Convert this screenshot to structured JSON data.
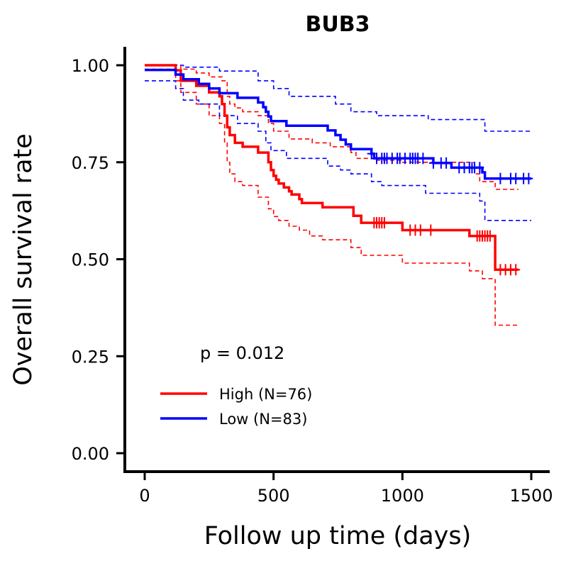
{
  "chart_data": {
    "type": "line",
    "subtype": "kaplan-meier",
    "title": "BUB3",
    "xlabel": "Follow up time (days)",
    "ylabel": "Overall survival rate",
    "xlim": [
      -75,
      1560
    ],
    "ylim": [
      -0.05,
      1.05
    ],
    "x_ticks": [
      0,
      500,
      1000,
      1500
    ],
    "x_tick_labels": [
      "0",
      "500",
      "1000",
      "1500"
    ],
    "y_ticks": [
      0,
      0.25,
      0.5,
      0.75,
      1.0
    ],
    "y_tick_labels": [
      "0.00",
      "0.25",
      "0.50",
      "0.75",
      "1.00"
    ],
    "grid": false,
    "legend_position": "bottom-left",
    "annotation": "p = 0.012",
    "series": [
      {
        "name": "High (N=76)",
        "color": "#ff0000",
        "steps": [
          [
            0,
            1.0
          ],
          [
            120,
            0.987
          ],
          [
            140,
            0.96
          ],
          [
            200,
            0.947
          ],
          [
            250,
            0.93
          ],
          [
            290,
            0.92
          ],
          [
            300,
            0.9
          ],
          [
            310,
            0.87
          ],
          [
            320,
            0.84
          ],
          [
            330,
            0.82
          ],
          [
            350,
            0.8
          ],
          [
            380,
            0.79
          ],
          [
            440,
            0.775
          ],
          [
            480,
            0.75
          ],
          [
            490,
            0.73
          ],
          [
            500,
            0.715
          ],
          [
            510,
            0.705
          ],
          [
            520,
            0.695
          ],
          [
            540,
            0.685
          ],
          [
            560,
            0.675
          ],
          [
            570,
            0.667
          ],
          [
            600,
            0.655
          ],
          [
            610,
            0.645
          ],
          [
            690,
            0.634
          ],
          [
            810,
            0.612
          ],
          [
            840,
            0.594
          ],
          [
            1000,
            0.575
          ],
          [
            1110,
            0.575
          ],
          [
            1260,
            0.56
          ],
          [
            1360,
            0.473
          ],
          [
            1450,
            0.473
          ]
        ],
        "ci_upper": [
          [
            0,
            1.0
          ],
          [
            120,
            1.0
          ],
          [
            140,
            0.99
          ],
          [
            200,
            0.98
          ],
          [
            250,
            0.97
          ],
          [
            300,
            0.96
          ],
          [
            320,
            0.92
          ],
          [
            330,
            0.9
          ],
          [
            350,
            0.89
          ],
          [
            380,
            0.88
          ],
          [
            440,
            0.87
          ],
          [
            480,
            0.85
          ],
          [
            500,
            0.83
          ],
          [
            560,
            0.81
          ],
          [
            650,
            0.8
          ],
          [
            720,
            0.79
          ],
          [
            800,
            0.775
          ],
          [
            820,
            0.76
          ],
          [
            900,
            0.755
          ],
          [
            1000,
            0.75
          ],
          [
            1280,
            0.72
          ],
          [
            1300,
            0.7
          ],
          [
            1360,
            0.68
          ],
          [
            1450,
            0.68
          ]
        ],
        "ci_lower": [
          [
            0,
            0.99
          ],
          [
            120,
            0.96
          ],
          [
            140,
            0.93
          ],
          [
            200,
            0.9
          ],
          [
            250,
            0.87
          ],
          [
            290,
            0.85
          ],
          [
            310,
            0.8
          ],
          [
            320,
            0.75
          ],
          [
            330,
            0.72
          ],
          [
            350,
            0.7
          ],
          [
            380,
            0.69
          ],
          [
            440,
            0.66
          ],
          [
            480,
            0.63
          ],
          [
            500,
            0.61
          ],
          [
            520,
            0.6
          ],
          [
            560,
            0.585
          ],
          [
            600,
            0.575
          ],
          [
            640,
            0.56
          ],
          [
            690,
            0.55
          ],
          [
            800,
            0.53
          ],
          [
            840,
            0.51
          ],
          [
            1000,
            0.49
          ],
          [
            1260,
            0.47
          ],
          [
            1310,
            0.45
          ],
          [
            1360,
            0.33
          ],
          [
            1450,
            0.33
          ]
        ],
        "censored_x": [
          890,
          900,
          910,
          920,
          930,
          1030,
          1050,
          1070,
          1110,
          1290,
          1300,
          1310,
          1320,
          1330,
          1340,
          1380,
          1400,
          1420,
          1440
        ]
      },
      {
        "name": "Low (N=83)",
        "color": "#0000ff",
        "steps": [
          [
            0,
            0.988
          ],
          [
            120,
            0.976
          ],
          [
            150,
            0.964
          ],
          [
            210,
            0.952
          ],
          [
            250,
            0.94
          ],
          [
            290,
            0.928
          ],
          [
            360,
            0.916
          ],
          [
            440,
            0.904
          ],
          [
            460,
            0.892
          ],
          [
            470,
            0.88
          ],
          [
            480,
            0.868
          ],
          [
            490,
            0.856
          ],
          [
            550,
            0.844
          ],
          [
            710,
            0.832
          ],
          [
            740,
            0.82
          ],
          [
            760,
            0.808
          ],
          [
            780,
            0.796
          ],
          [
            800,
            0.784
          ],
          [
            880,
            0.772
          ],
          [
            890,
            0.76
          ],
          [
            1100,
            0.76
          ],
          [
            1120,
            0.748
          ],
          [
            1190,
            0.736
          ],
          [
            1310,
            0.724
          ],
          [
            1320,
            0.708
          ],
          [
            1500,
            0.708
          ]
        ],
        "ci_upper": [
          [
            0,
            1.0
          ],
          [
            150,
            0.995
          ],
          [
            290,
            0.985
          ],
          [
            440,
            0.96
          ],
          [
            500,
            0.94
          ],
          [
            560,
            0.92
          ],
          [
            740,
            0.9
          ],
          [
            800,
            0.88
          ],
          [
            900,
            0.87
          ],
          [
            1100,
            0.86
          ],
          [
            1320,
            0.83
          ],
          [
            1500,
            0.83
          ]
        ],
        "ci_lower": [
          [
            0,
            0.96
          ],
          [
            120,
            0.94
          ],
          [
            150,
            0.91
          ],
          [
            210,
            0.9
          ],
          [
            290,
            0.87
          ],
          [
            360,
            0.85
          ],
          [
            440,
            0.83
          ],
          [
            470,
            0.8
          ],
          [
            490,
            0.78
          ],
          [
            550,
            0.76
          ],
          [
            710,
            0.74
          ],
          [
            760,
            0.73
          ],
          [
            800,
            0.72
          ],
          [
            880,
            0.7
          ],
          [
            920,
            0.69
          ],
          [
            1090,
            0.67
          ],
          [
            1300,
            0.65
          ],
          [
            1320,
            0.6
          ],
          [
            1500,
            0.6
          ]
        ],
        "censored_x": [
          880,
          900,
          920,
          930,
          940,
          960,
          980,
          990,
          1010,
          1030,
          1040,
          1050,
          1060,
          1080,
          1120,
          1150,
          1170,
          1220,
          1240,
          1260,
          1270,
          1280,
          1300,
          1380,
          1420,
          1440,
          1470,
          1490
        ]
      }
    ]
  }
}
